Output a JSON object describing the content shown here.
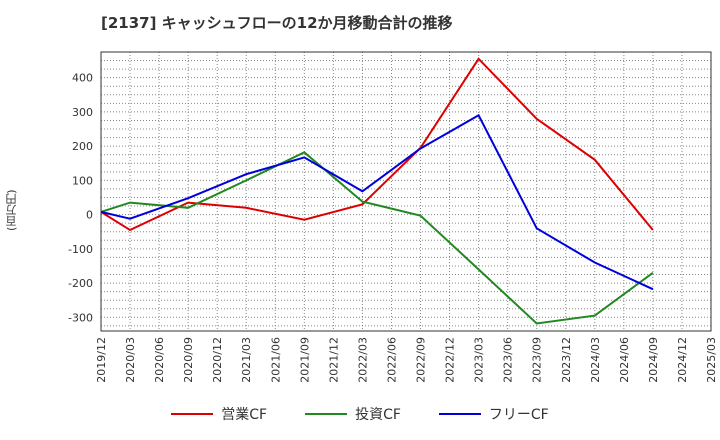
{
  "chart_data": {
    "type": "line",
    "title": "[2137]  キャッシュフローの12か月移動合計の推移",
    "ylabel": "(百万円)",
    "xlabel": "",
    "ylim": [
      -340,
      475
    ],
    "yticks": [
      400,
      300,
      200,
      100,
      0,
      -100,
      -200,
      -300
    ],
    "categories": [
      "2019/12",
      "2020/03",
      "2020/06",
      "2020/09",
      "2020/12",
      "2021/03",
      "2021/06",
      "2021/09",
      "2021/12",
      "2022/03",
      "2022/06",
      "2022/09",
      "2022/12",
      "2023/03",
      "2023/06",
      "2023/09",
      "2023/12",
      "2024/03",
      "2024/06",
      "2024/09",
      "2024/12",
      "2025/03"
    ],
    "series": [
      {
        "name": "営業CF",
        "color": "#dd0000",
        "values": [
          8,
          -45,
          null,
          35,
          null,
          20,
          null,
          -15,
          null,
          30,
          null,
          195,
          null,
          455,
          null,
          280,
          null,
          160,
          null,
          -45,
          null,
          null
        ]
      },
      {
        "name": "投資CF",
        "color": "#228822",
        "values": [
          8,
          35,
          null,
          20,
          null,
          100,
          null,
          182,
          null,
          38,
          null,
          -3,
          null,
          -160,
          null,
          -318,
          null,
          -295,
          null,
          -170,
          null,
          null
        ]
      },
      {
        "name": "フリーCF",
        "color": "#0000dd",
        "values": [
          8,
          -12,
          null,
          48,
          null,
          118,
          null,
          167,
          null,
          68,
          null,
          193,
          null,
          290,
          null,
          -40,
          null,
          -140,
          null,
          -218,
          null,
          null
        ]
      }
    ]
  }
}
